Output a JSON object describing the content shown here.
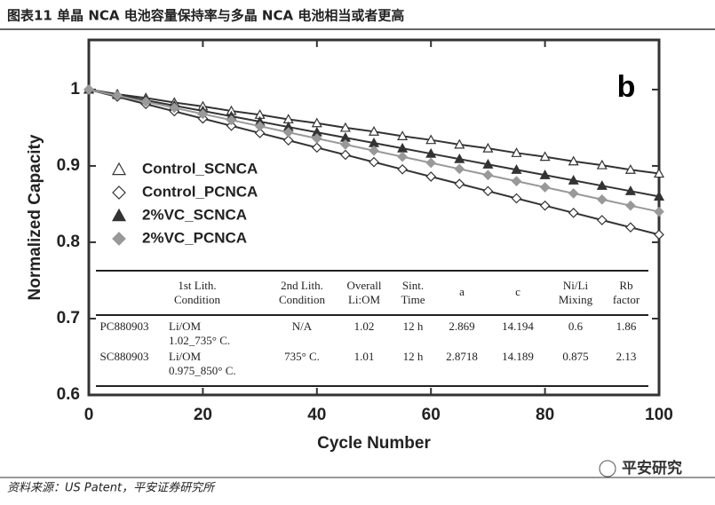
{
  "header": {
    "title": "图表11   单晶 NCA 电池容量保持率与多晶 NCA 电池相当或者更高"
  },
  "chart_data": {
    "type": "line",
    "panel_label": "b",
    "x_label": "Cycle Number",
    "y_label": "Normalized Capacity",
    "xlim": [
      0,
      100
    ],
    "xticks": [
      0,
      20,
      40,
      60,
      80,
      100
    ],
    "ylim": [
      0.6,
      1.065
    ],
    "yticks": [
      0.6,
      0.7,
      0.8,
      0.9,
      1
    ],
    "x": [
      0,
      5,
      10,
      15,
      20,
      25,
      30,
      35,
      40,
      45,
      50,
      55,
      60,
      65,
      70,
      75,
      80,
      85,
      90,
      95,
      100
    ],
    "series": [
      {
        "name": "Control_SCNCA",
        "marker": "triangle-open",
        "color": "#333333",
        "values": [
          1.0,
          0.994,
          0.989,
          0.983,
          0.978,
          0.972,
          0.967,
          0.961,
          0.956,
          0.95,
          0.945,
          0.939,
          0.934,
          0.928,
          0.923,
          0.917,
          0.912,
          0.906,
          0.901,
          0.895,
          0.89
        ]
      },
      {
        "name": "Control_PCNCA",
        "marker": "diamond-open",
        "color": "#333333",
        "values": [
          1.0,
          0.9905,
          0.981,
          0.9715,
          0.962,
          0.9525,
          0.943,
          0.9335,
          0.924,
          0.9145,
          0.905,
          0.8955,
          0.886,
          0.8765,
          0.867,
          0.8575,
          0.848,
          0.8385,
          0.829,
          0.8195,
          0.81
        ]
      },
      {
        "name": "2%VC_SCNCA",
        "marker": "triangle-filled",
        "color": "#333333",
        "values": [
          1.0,
          0.993,
          0.986,
          0.979,
          0.972,
          0.965,
          0.958,
          0.951,
          0.944,
          0.937,
          0.93,
          0.923,
          0.916,
          0.909,
          0.902,
          0.895,
          0.888,
          0.881,
          0.874,
          0.867,
          0.86
        ]
      },
      {
        "name": "2%VC_PCNCA",
        "marker": "diamond-filled",
        "color": "#999999",
        "values": [
          1.0,
          0.992,
          0.984,
          0.976,
          0.968,
          0.96,
          0.952,
          0.944,
          0.936,
          0.928,
          0.92,
          0.912,
          0.904,
          0.896,
          0.888,
          0.88,
          0.872,
          0.864,
          0.856,
          0.848,
          0.84
        ]
      }
    ],
    "table": {
      "columns": [
        [
          "1st Lith.",
          "Condition"
        ],
        [
          "2nd Lith.",
          "Condition"
        ],
        [
          "Overall",
          "Li:OM"
        ],
        [
          "Sint.",
          "Time"
        ],
        [
          "a"
        ],
        [
          "c"
        ],
        [
          "Ni/Li",
          "Mixing"
        ],
        [
          "Rb",
          "factor"
        ]
      ],
      "rows": [
        [
          "PC880903",
          [
            "Li/OM",
            "1.02_735° C."
          ],
          "N/A",
          "1.02",
          "12 h",
          "2.869",
          "14.194",
          "0.6",
          "1.86"
        ],
        [
          "SC880903",
          [
            "Li/OM",
            "0.975_850° C."
          ],
          "735° C.",
          "1.01",
          "12 h",
          "2.8718",
          "14.189",
          "0.875",
          "2.13"
        ]
      ]
    }
  },
  "footer": {
    "source": "资料来源：US Patent，平安证券研究所",
    "logo": "平安研究"
  }
}
